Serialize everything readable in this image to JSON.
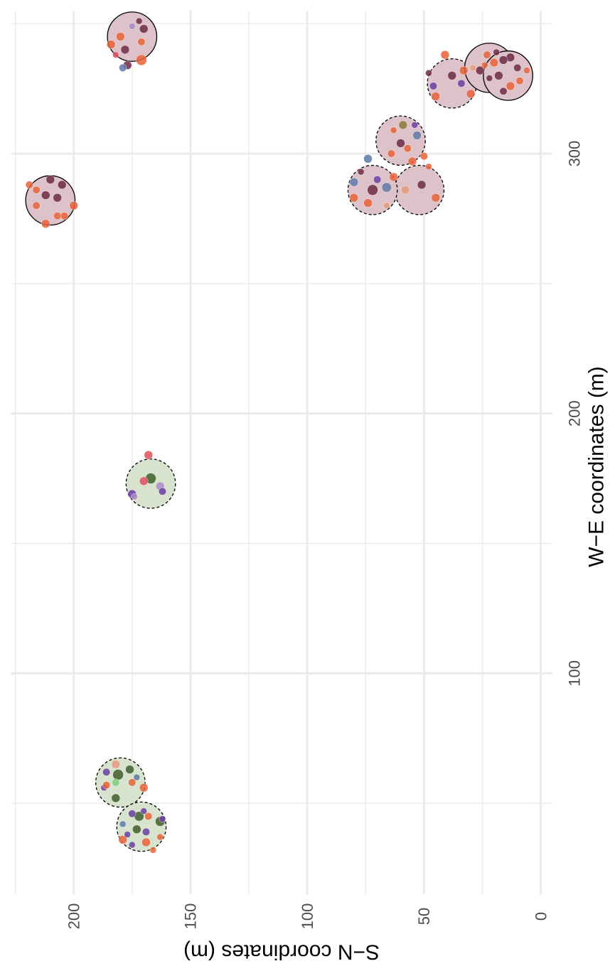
{
  "chart_data": {
    "type": "scatter",
    "title": "",
    "xlabel": "W−E coordinates (m)",
    "ylabel": "S−N coordinates (m)",
    "xlim": [
      15,
      355
    ],
    "ylim": [
      -5,
      227
    ],
    "x_ticks": [
      100,
      200,
      300
    ],
    "y_ticks": [
      0,
      50,
      100,
      150,
      200
    ],
    "x_minor_ticks": [
      50,
      150,
      250,
      350
    ],
    "y_minor_ticks": [
      25,
      75,
      125,
      175,
      225
    ],
    "grid": true,
    "legend": "none",
    "colors": {
      "maroon": "#6e2a45",
      "orange": "#e8633a",
      "purple": "#6b3fa0",
      "blue": "#5e7aa8",
      "salmon": "#e59a7d",
      "darkgreen": "#3f5e2a",
      "lightgreen": "#82cc7c",
      "olive": "#8a7a36",
      "lavender": "#a88ac8",
      "red": "#e0505a"
    },
    "plots": [
      {
        "x": 327,
        "y": 38,
        "r": 10,
        "group": "pink",
        "border": "dashed"
      },
      {
        "x": 345,
        "y": 175,
        "r": 10,
        "group": "pink",
        "border": "solid"
      },
      {
        "x": 333,
        "y": 22,
        "r": 10,
        "group": "pink",
        "border": "solid"
      },
      {
        "x": 330,
        "y": 14,
        "r": 10,
        "group": "pink",
        "border": "solid"
      },
      {
        "x": 305,
        "y": 60,
        "r": 10,
        "group": "pink",
        "border": "dashed"
      },
      {
        "x": 286,
        "y": 52,
        "r": 10,
        "group": "pink",
        "border": "dashed"
      },
      {
        "x": 286,
        "y": 72,
        "r": 10,
        "group": "pink",
        "border": "dashed"
      },
      {
        "x": 282,
        "y": 210,
        "r": 10,
        "group": "pink",
        "border": "solid"
      },
      {
        "x": 173,
        "y": 167,
        "r": 10,
        "group": "green",
        "border": "dashed"
      },
      {
        "x": 58,
        "y": 180,
        "r": 10,
        "group": "green",
        "border": "dashed"
      },
      {
        "x": 41,
        "y": 171,
        "r": 10,
        "group": "green",
        "border": "dashed"
      }
    ],
    "points": [
      {
        "x": 338,
        "y": 41,
        "s": 4,
        "c": "orange"
      },
      {
        "x": 330,
        "y": 38,
        "s": 4,
        "c": "maroon"
      },
      {
        "x": 327,
        "y": 34,
        "s": 3.5,
        "c": "purple"
      },
      {
        "x": 332,
        "y": 33,
        "s": 4,
        "c": "orange"
      },
      {
        "x": 323,
        "y": 30,
        "s": 4,
        "c": "orange"
      },
      {
        "x": 326,
        "y": 46,
        "s": 3.5,
        "c": "purple"
      },
      {
        "x": 322,
        "y": 45,
        "s": 4,
        "c": "orange"
      },
      {
        "x": 331,
        "y": 48,
        "s": 3,
        "c": "maroon"
      },
      {
        "x": 342,
        "y": 184,
        "s": 4,
        "c": "orange"
      },
      {
        "x": 348,
        "y": 170,
        "s": 4,
        "c": "maroon"
      },
      {
        "x": 340,
        "y": 178,
        "s": 4,
        "c": "maroon"
      },
      {
        "x": 334,
        "y": 177,
        "s": 4,
        "c": "maroon"
      },
      {
        "x": 336,
        "y": 171,
        "s": 5,
        "c": "orange"
      },
      {
        "x": 349,
        "y": 175,
        "s": 3,
        "c": "lavender"
      },
      {
        "x": 333,
        "y": 179,
        "s": 3.5,
        "c": "blue"
      },
      {
        "x": 343,
        "y": 171,
        "s": 3.5,
        "c": "orange"
      },
      {
        "x": 351,
        "y": 172,
        "s": 3,
        "c": "maroon"
      },
      {
        "x": 345,
        "y": 180,
        "s": 4,
        "c": "orange"
      },
      {
        "x": 338,
        "y": 182,
        "s": 3,
        "c": "red"
      },
      {
        "x": 335,
        "y": 20,
        "s": 4,
        "c": "orange"
      },
      {
        "x": 332,
        "y": 26,
        "s": 4,
        "c": "maroon"
      },
      {
        "x": 330,
        "y": 18,
        "s": 4,
        "c": "maroon"
      },
      {
        "x": 337,
        "y": 13,
        "s": 4,
        "c": "maroon"
      },
      {
        "x": 333,
        "y": 10,
        "s": 3.5,
        "c": "maroon"
      },
      {
        "x": 326,
        "y": 13,
        "s": 4,
        "c": "orange"
      },
      {
        "x": 338,
        "y": 23,
        "s": 3.5,
        "c": "orange"
      },
      {
        "x": 333,
        "y": 29,
        "s": 3,
        "c": "salmon"
      },
      {
        "x": 329,
        "y": 22,
        "s": 3,
        "c": "maroon"
      },
      {
        "x": 336,
        "y": 16,
        "s": 4,
        "c": "maroon"
      },
      {
        "x": 328,
        "y": 9,
        "s": 3.5,
        "c": "orange"
      },
      {
        "x": 324,
        "y": 16,
        "s": 3.5,
        "c": "maroon"
      },
      {
        "x": 332,
        "y": 6,
        "s": 3,
        "c": "orange"
      },
      {
        "x": 339,
        "y": 19,
        "s": 3,
        "c": "maroon"
      },
      {
        "x": 334,
        "y": 24,
        "s": 3,
        "c": "orange"
      },
      {
        "x": 311,
        "y": 59,
        "s": 4,
        "c": "olive"
      },
      {
        "x": 307,
        "y": 53,
        "s": 4,
        "c": "blue"
      },
      {
        "x": 304,
        "y": 60,
        "s": 4,
        "c": "maroon"
      },
      {
        "x": 302,
        "y": 57,
        "s": 3.5,
        "c": "orange"
      },
      {
        "x": 309,
        "y": 63,
        "s": 3,
        "c": "orange"
      },
      {
        "x": 300,
        "y": 64,
        "s": 3.5,
        "c": "orange"
      },
      {
        "x": 297,
        "y": 55,
        "s": 4,
        "c": "orange"
      },
      {
        "x": 295,
        "y": 48,
        "s": 3,
        "c": "orange"
      },
      {
        "x": 288,
        "y": 51,
        "s": 4,
        "c": "maroon"
      },
      {
        "x": 283,
        "y": 45,
        "s": 4,
        "c": "orange"
      },
      {
        "x": 291,
        "y": 63,
        "s": 4,
        "c": "orange"
      },
      {
        "x": 286,
        "y": 58,
        "s": 4,
        "c": "salmon"
      },
      {
        "x": 311,
        "y": 54,
        "s": 3,
        "c": "purple"
      },
      {
        "x": 299,
        "y": 50,
        "s": 3.5,
        "c": "orange"
      },
      {
        "x": 298,
        "y": 74,
        "s": 4,
        "c": "blue"
      },
      {
        "x": 289,
        "y": 80,
        "s": 4,
        "c": "blue"
      },
      {
        "x": 286,
        "y": 72,
        "s": 5,
        "c": "maroon"
      },
      {
        "x": 287,
        "y": 66,
        "s": 4.5,
        "c": "blue"
      },
      {
        "x": 281,
        "y": 74,
        "s": 4,
        "c": "orange"
      },
      {
        "x": 283,
        "y": 80,
        "s": 4,
        "c": "orange"
      },
      {
        "x": 290,
        "y": 70,
        "s": 3.5,
        "c": "purple"
      },
      {
        "x": 293,
        "y": 77,
        "s": 3,
        "c": "maroon"
      },
      {
        "x": 280,
        "y": 66,
        "s": 3,
        "c": "salmon"
      },
      {
        "x": 290,
        "y": 210,
        "s": 4,
        "c": "maroon"
      },
      {
        "x": 284,
        "y": 212,
        "s": 4,
        "c": "maroon"
      },
      {
        "x": 283,
        "y": 207,
        "s": 4,
        "c": "maroon"
      },
      {
        "x": 288,
        "y": 205,
        "s": 4,
        "c": "maroon"
      },
      {
        "x": 286,
        "y": 216,
        "s": 3.5,
        "c": "orange"
      },
      {
        "x": 280,
        "y": 216,
        "s": 3.5,
        "c": "orange"
      },
      {
        "x": 276,
        "y": 204,
        "s": 3.5,
        "c": "orange"
      },
      {
        "x": 273,
        "y": 212,
        "s": 4,
        "c": "orange"
      },
      {
        "x": 280,
        "y": 200,
        "s": 4,
        "c": "orange"
      },
      {
        "x": 288,
        "y": 219,
        "s": 3.5,
        "c": "orange"
      },
      {
        "x": 276,
        "y": 207,
        "s": 3.5,
        "c": "orange"
      },
      {
        "x": 184,
        "y": 168,
        "s": 4,
        "c": "red"
      },
      {
        "x": 175,
        "y": 167,
        "s": 5,
        "c": "darkgreen"
      },
      {
        "x": 174,
        "y": 170,
        "s": 4,
        "c": "red"
      },
      {
        "x": 169,
        "y": 175,
        "s": 4,
        "c": "purple"
      },
      {
        "x": 172,
        "y": 163,
        "s": 4,
        "c": "lavender"
      },
      {
        "x": 170,
        "y": 162,
        "s": 3.5,
        "c": "purple"
      },
      {
        "x": 168,
        "y": 174,
        "s": 3,
        "c": "lavender"
      },
      {
        "x": 63,
        "y": 176,
        "s": 4,
        "c": "darkgreen"
      },
      {
        "x": 61,
        "y": 181,
        "s": 5,
        "c": "darkgreen"
      },
      {
        "x": 58,
        "y": 175,
        "s": 3.5,
        "c": "orange"
      },
      {
        "x": 56,
        "y": 187,
        "s": 3,
        "c": "purple"
      },
      {
        "x": 52,
        "y": 182,
        "s": 4,
        "c": "darkgreen"
      },
      {
        "x": 62,
        "y": 186,
        "s": 3.5,
        "c": "purple"
      },
      {
        "x": 58,
        "y": 182,
        "s": 3.5,
        "c": "lightgreen"
      },
      {
        "x": 60,
        "y": 173,
        "s": 3,
        "c": "blue"
      },
      {
        "x": 56,
        "y": 170,
        "s": 4,
        "c": "orange"
      },
      {
        "x": 65,
        "y": 182,
        "s": 4,
        "c": "salmon"
      },
      {
        "x": 57,
        "y": 186,
        "s": 3.5,
        "c": "orange"
      },
      {
        "x": 45,
        "y": 172,
        "s": 4.5,
        "c": "darkgreen"
      },
      {
        "x": 43,
        "y": 163,
        "s": 4.5,
        "c": "darkgreen"
      },
      {
        "x": 40,
        "y": 173,
        "s": 4,
        "c": "darkgreen"
      },
      {
        "x": 46,
        "y": 175,
        "s": 3.5,
        "c": "purple"
      },
      {
        "x": 39,
        "y": 169,
        "s": 3.5,
        "c": "purple"
      },
      {
        "x": 35,
        "y": 169,
        "s": 4,
        "c": "orange"
      },
      {
        "x": 32,
        "y": 166,
        "s": 3,
        "c": "orange"
      },
      {
        "x": 36,
        "y": 179,
        "s": 4,
        "c": "orange"
      },
      {
        "x": 45,
        "y": 168,
        "s": 3.5,
        "c": "orange"
      },
      {
        "x": 38,
        "y": 177,
        "s": 3,
        "c": "purple"
      },
      {
        "x": 42,
        "y": 179,
        "s": 3,
        "c": "blue"
      },
      {
        "x": 47,
        "y": 170,
        "s": 3,
        "c": "purple"
      },
      {
        "x": 44,
        "y": 162,
        "s": 3,
        "c": "purple"
      },
      {
        "x": 34,
        "y": 175,
        "s": 3,
        "c": "purple"
      },
      {
        "x": 37,
        "y": 163,
        "s": 3,
        "c": "orange"
      }
    ]
  }
}
